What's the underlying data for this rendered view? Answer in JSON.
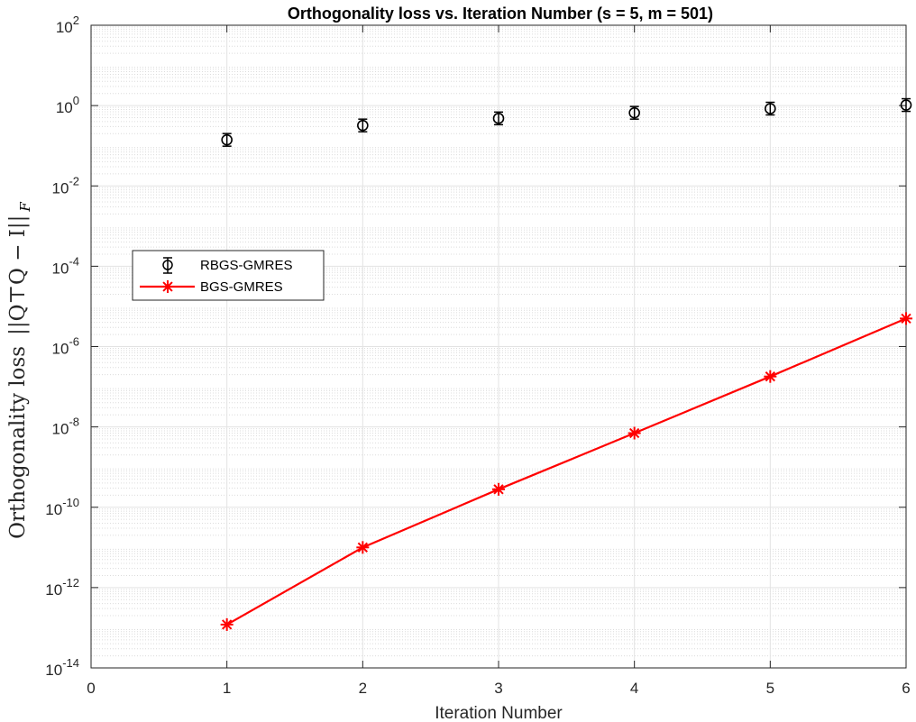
{
  "chart_data": {
    "type": "line",
    "title": "Orthogonality loss vs. Iteration Number (s = 5, m = 501)",
    "xlabel": "Iteration Number",
    "ylabel": {
      "prefix": "Orthogonality loss",
      "expression": "||Q⊤Q − I||",
      "subscript": "F"
    },
    "xlim": [
      0,
      6
    ],
    "ylim": [
      1e-14,
      100
    ],
    "yscale": "log",
    "grid": true,
    "minor_grid": true,
    "legend_position": "left-middle",
    "x_ticks": [
      "0",
      "1",
      "2",
      "3",
      "4",
      "5",
      "6"
    ],
    "y_ticks": [
      {
        "base": "10",
        "exp": "-14"
      },
      {
        "base": "10",
        "exp": "-12"
      },
      {
        "base": "10",
        "exp": "-10"
      },
      {
        "base": "10",
        "exp": "-8"
      },
      {
        "base": "10",
        "exp": "-6"
      },
      {
        "base": "10",
        "exp": "-4"
      },
      {
        "base": "10",
        "exp": "-2"
      },
      {
        "base": "10",
        "exp": "0"
      },
      {
        "base": "10",
        "exp": "2"
      }
    ],
    "series": [
      {
        "name": "RBGS-GMRES",
        "color": "#000000",
        "marker": "circle-errorbar",
        "line": "none",
        "x": [
          1,
          2,
          3,
          4,
          5,
          6
        ],
        "y": [
          0.14,
          0.32,
          0.48,
          0.66,
          0.84,
          1.03
        ]
      },
      {
        "name": "BGS-GMRES",
        "color": "#ff0000",
        "marker": "asterisk",
        "line": "solid",
        "x": [
          1,
          2,
          3,
          4,
          5,
          6
        ],
        "y": [
          1.2e-13,
          1e-11,
          2.8e-10,
          7e-09,
          1.8e-07,
          5e-06
        ]
      }
    ]
  }
}
